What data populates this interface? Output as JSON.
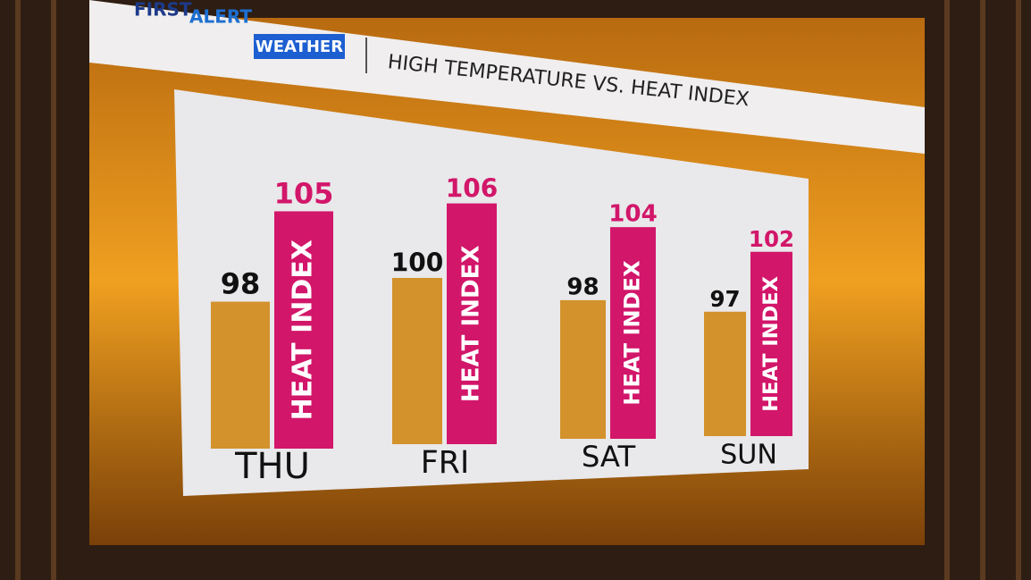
{
  "brand": {
    "first": "FIRST",
    "alert": "ALERT",
    "weather": "WEATHER"
  },
  "chart_data": {
    "type": "bar",
    "title": "HIGH TEMPERATURE VS. HEAT INDEX",
    "categories": [
      "THU",
      "FRI",
      "SAT",
      "SUN"
    ],
    "series": [
      {
        "color": "#d3922c",
        "values": [
          98,
          100,
          98,
          97
        ]
      },
      {
        "name": "HEAT INDEX",
        "color": "#d2166a",
        "values": [
          105,
          106,
          104,
          102
        ]
      }
    ]
  }
}
